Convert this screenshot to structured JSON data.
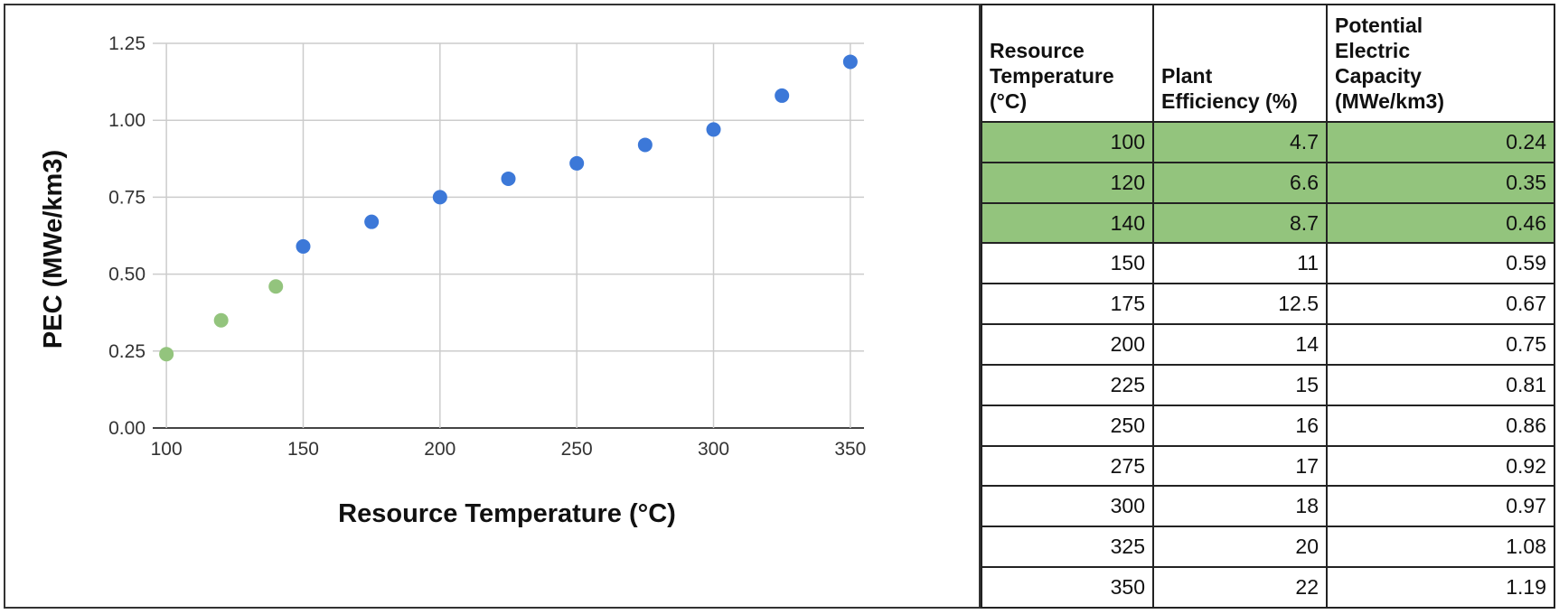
{
  "chart_data": {
    "type": "scatter",
    "xlabel": "Resource Temperature (°C)",
    "ylabel": "PEC (MWe/km3)",
    "xlim": [
      95,
      355
    ],
    "ylim": [
      0,
      1.25
    ],
    "xticks": [
      "100",
      "150",
      "200",
      "250",
      "300",
      "350"
    ],
    "yticks": [
      "0.00",
      "0.25",
      "0.50",
      "0.75",
      "1.00",
      "1.25"
    ],
    "grid": true,
    "colors": {
      "highlighted": "#93c47d",
      "default": "#3c78d8"
    },
    "points": [
      {
        "x": 100,
        "y": 0.24,
        "highlight": true
      },
      {
        "x": 120,
        "y": 0.35,
        "highlight": true
      },
      {
        "x": 140,
        "y": 0.46,
        "highlight": true
      },
      {
        "x": 150,
        "y": 0.59,
        "highlight": false
      },
      {
        "x": 175,
        "y": 0.67,
        "highlight": false
      },
      {
        "x": 200,
        "y": 0.75,
        "highlight": false
      },
      {
        "x": 225,
        "y": 0.81,
        "highlight": false
      },
      {
        "x": 250,
        "y": 0.86,
        "highlight": false
      },
      {
        "x": 275,
        "y": 0.92,
        "highlight": false
      },
      {
        "x": 300,
        "y": 0.97,
        "highlight": false
      },
      {
        "x": 325,
        "y": 1.08,
        "highlight": false
      },
      {
        "x": 350,
        "y": 1.19,
        "highlight": false
      }
    ]
  },
  "table": {
    "headers": [
      [
        "Resource",
        "Temperature",
        "(°C)"
      ],
      [
        "Plant",
        "Efficiency (%)"
      ],
      [
        "Potential",
        "Electric",
        "Capacity",
        "(MWe/km3)"
      ]
    ],
    "rows": [
      {
        "temp": "100",
        "eff": "4.7",
        "cap": "0.24",
        "highlight": true
      },
      {
        "temp": "120",
        "eff": "6.6",
        "cap": "0.35",
        "highlight": true
      },
      {
        "temp": "140",
        "eff": "8.7",
        "cap": "0.46",
        "highlight": true
      },
      {
        "temp": "150",
        "eff": "11",
        "cap": "0.59",
        "highlight": false
      },
      {
        "temp": "175",
        "eff": "12.5",
        "cap": "0.67",
        "highlight": false
      },
      {
        "temp": "200",
        "eff": "14",
        "cap": "0.75",
        "highlight": false
      },
      {
        "temp": "225",
        "eff": "15",
        "cap": "0.81",
        "highlight": false
      },
      {
        "temp": "250",
        "eff": "16",
        "cap": "0.86",
        "highlight": false
      },
      {
        "temp": "275",
        "eff": "17",
        "cap": "0.92",
        "highlight": false
      },
      {
        "temp": "300",
        "eff": "18",
        "cap": "0.97",
        "highlight": false
      },
      {
        "temp": "325",
        "eff": "20",
        "cap": "1.08",
        "highlight": false
      },
      {
        "temp": "350",
        "eff": "22",
        "cap": "1.19",
        "highlight": false
      }
    ]
  }
}
